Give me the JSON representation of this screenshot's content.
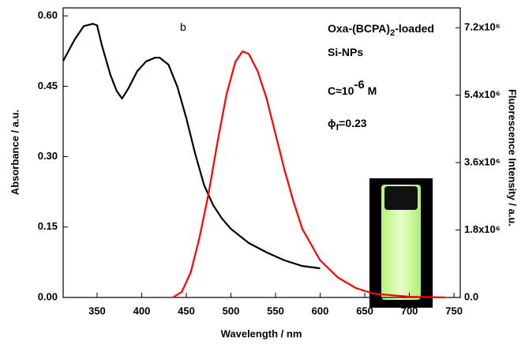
{
  "chart_data": {
    "type": "line",
    "xlabel": "Wavelength / nm",
    "ylabel": "Absorbance / a.u.",
    "y2label": "Fluorescence Intensity / a.u.",
    "annotations": [
      [
        "b"
      ],
      [
        "Oxa-(BCPA)",
        "2",
        "-loaded"
      ],
      [
        "Si-NPs"
      ],
      [
        "C≈10",
        "-6",
        " M"
      ],
      [
        "ϕ",
        "f",
        "=0.23"
      ]
    ],
    "xlim": [
      312,
      757
    ],
    "xticks": [
      350,
      400,
      450,
      500,
      550,
      600,
      650,
      700,
      750
    ],
    "ylim": [
      0,
      0.617
    ],
    "yticks": [
      {
        "value": 0,
        "label": "0.00"
      },
      0.15,
      {
        "value": 0.3,
        "label": "0.30"
      },
      0.45,
      {
        "value": 0.6,
        "label": "0.60"
      }
    ],
    "y2lim": [
      0,
      7730000
    ],
    "y2ticks": [
      {
        "value": 0,
        "label": "0.0"
      },
      {
        "value": 1800000,
        "label": "1.8x10⁶"
      },
      {
        "value": 3600000,
        "label": "3.6x10⁶"
      },
      {
        "value": 5400000,
        "label": "5.4x10⁶"
      },
      {
        "value": 7200000,
        "label": "7.2x10⁶"
      }
    ],
    "series": [
      {
        "color": "#000000",
        "x": [
          312,
          325,
          335,
          345,
          350,
          355,
          365,
          372,
          378,
          385,
          395,
          405,
          415,
          420,
          430,
          440,
          450,
          460,
          470,
          480,
          490,
          500,
          520,
          540,
          560,
          580,
          600
        ],
        "values": [
          0.504,
          0.55,
          0.578,
          0.583,
          0.58,
          0.54,
          0.474,
          0.44,
          0.424,
          0.445,
          0.482,
          0.503,
          0.511,
          0.511,
          0.496,
          0.449,
          0.382,
          0.306,
          0.239,
          0.197,
          0.168,
          0.146,
          0.116,
          0.096,
          0.079,
          0.067,
          0.062
        ]
      },
      {
        "color": "#ff0000",
        "axis": "y2",
        "x": [
          435,
          445,
          455,
          465,
          475,
          485,
          495,
          505,
          513,
          520,
          530,
          540,
          550,
          560,
          570,
          580,
          600,
          620,
          640,
          660,
          700,
          740
        ],
        "values": [
          0,
          150000,
          670000,
          1620000,
          2780000,
          4150000,
          5410000,
          6290000,
          6570000,
          6500000,
          6040000,
          5310000,
          4360000,
          3410000,
          2570000,
          1830000,
          990000,
          530000,
          250000,
          100000,
          20000,
          0
        ]
      }
    ]
  }
}
